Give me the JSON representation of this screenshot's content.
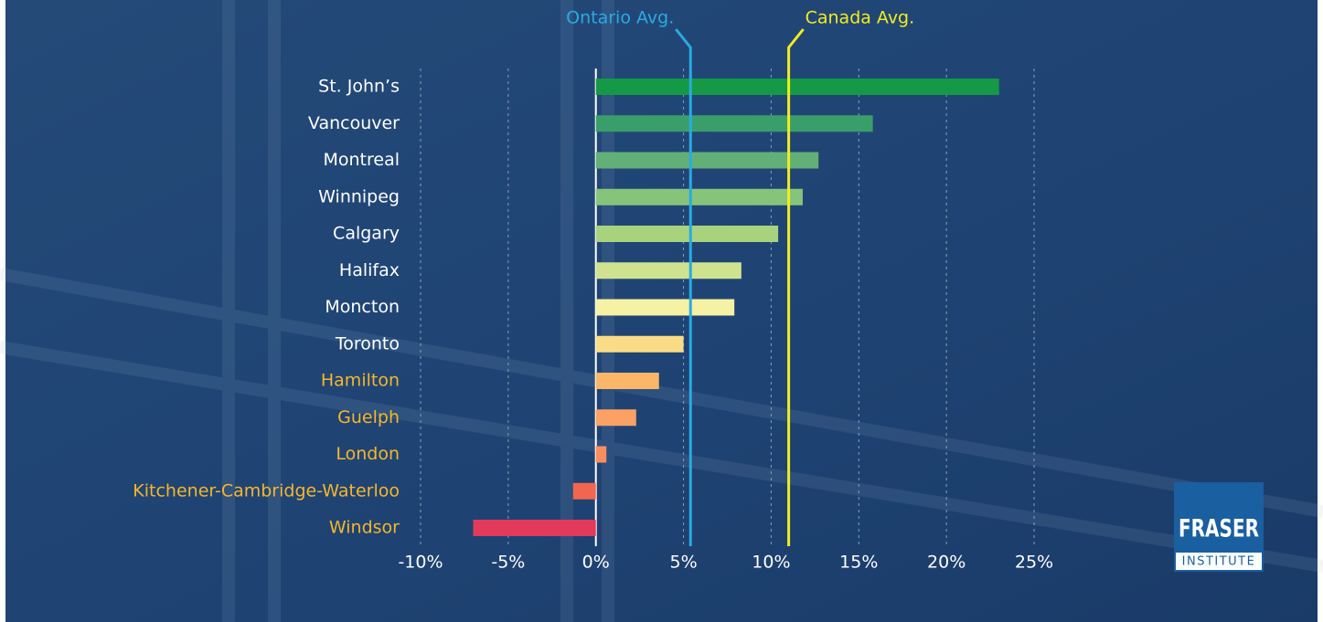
{
  "chart_data": {
    "type": "bar",
    "orientation": "horizontal",
    "categories": [
      "St. John’s",
      "Vancouver",
      "Montreal",
      "Winnipeg",
      "Calgary",
      "Halifax",
      "Moncton",
      "Toronto",
      "Hamilton",
      "Guelph",
      "London",
      "Kitchener-Cambridge-Waterloo",
      "Windsor"
    ],
    "values": [
      23.0,
      15.8,
      12.7,
      11.8,
      10.4,
      8.3,
      7.9,
      5.0,
      3.6,
      2.3,
      0.6,
      -1.3,
      -7.0
    ],
    "colors": [
      "#159947",
      "#3a9e6a",
      "#62b078",
      "#86c47c",
      "#a9d27f",
      "#cfe28f",
      "#f5f2a4",
      "#fbdc86",
      "#fbb668",
      "#fba163",
      "#f98d5e",
      "#f0664f",
      "#e23a5a"
    ],
    "category_colors": [
      "#ffffff",
      "#ffffff",
      "#ffffff",
      "#ffffff",
      "#ffffff",
      "#ffffff",
      "#ffffff",
      "#ffffff",
      "#f6b62b",
      "#f6b62b",
      "#f6b62b",
      "#f6b62b",
      "#f6b62b"
    ],
    "xlim": [
      -10,
      25
    ],
    "xticks": [
      {
        "value": -10,
        "label": "-10%"
      },
      {
        "value": -5,
        "label": "-5%"
      },
      {
        "value": 0,
        "label": "0%"
      },
      {
        "value": 5,
        "label": "5%"
      },
      {
        "value": 10,
        "label": "10%"
      },
      {
        "value": 15,
        "label": "15%"
      },
      {
        "value": 20,
        "label": "20%"
      },
      {
        "value": 25,
        "label": "25%"
      }
    ],
    "grid": true,
    "reference_lines": [
      {
        "label": "Ontario Avg.",
        "value": 5.4,
        "color": "#29abe2"
      },
      {
        "label": "Canada Avg.",
        "value": 11.0,
        "color": "#f4ec1e"
      }
    ]
  },
  "logo": {
    "line1": "FRASER",
    "line2": "INSTITUTE"
  }
}
